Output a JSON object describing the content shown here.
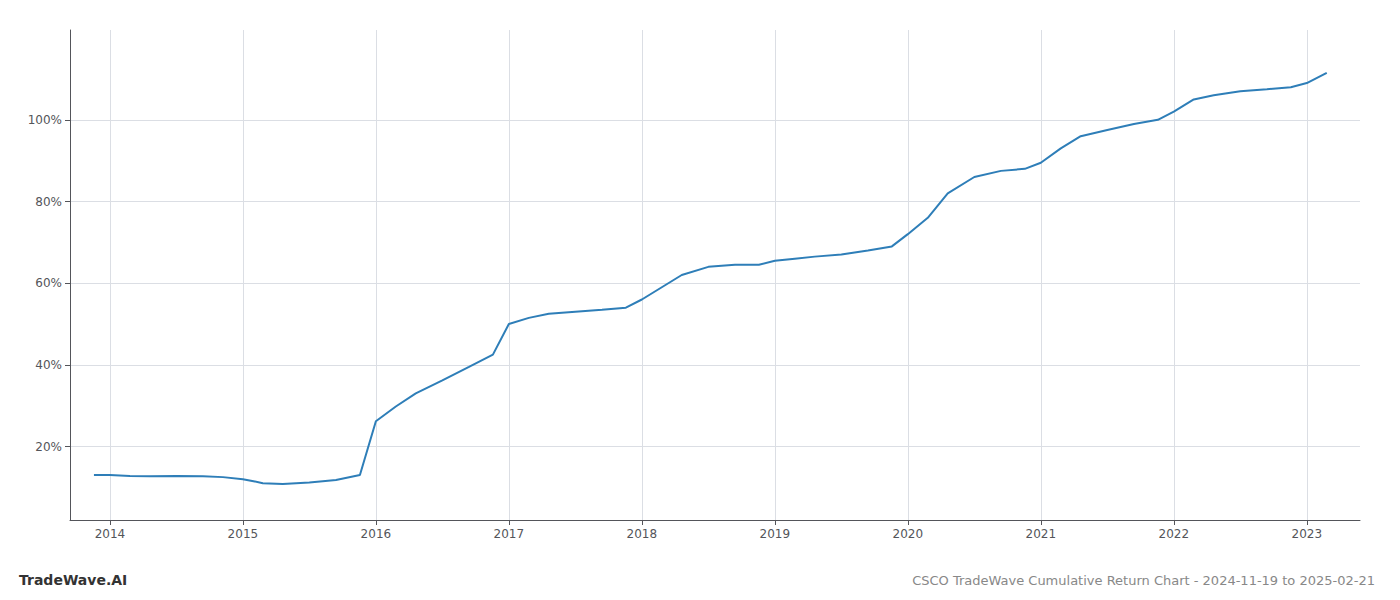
{
  "chart_data": {
    "type": "line",
    "title": "CSCO TradeWave Cumulative Return Chart - 2024-11-19 to 2025-02-21",
    "annotations": [
      "TradeWave.AI"
    ],
    "x": [
      2013.88,
      2014.0,
      2014.15,
      2014.3,
      2014.5,
      2014.7,
      2014.85,
      2015.0,
      2015.08,
      2015.15,
      2015.3,
      2015.5,
      2015.7,
      2015.88,
      2016.0,
      2016.15,
      2016.3,
      2016.5,
      2016.7,
      2016.88,
      2017.0,
      2017.15,
      2017.3,
      2017.5,
      2017.7,
      2017.88,
      2018.0,
      2018.15,
      2018.3,
      2018.5,
      2018.7,
      2018.88,
      2019.0,
      2019.15,
      2019.3,
      2019.5,
      2019.7,
      2019.88,
      2020.0,
      2020.15,
      2020.3,
      2020.5,
      2020.7,
      2020.88,
      2021.0,
      2021.15,
      2021.3,
      2021.5,
      2021.7,
      2021.88,
      2022.0,
      2022.15,
      2022.3,
      2022.5,
      2022.7,
      2022.88,
      2023.0,
      2023.15
    ],
    "values": [
      0.13,
      0.13,
      0.128,
      0.127,
      0.128,
      0.127,
      0.125,
      0.12,
      0.115,
      0.11,
      0.108,
      0.112,
      0.118,
      0.13,
      0.262,
      0.298,
      0.33,
      0.362,
      0.395,
      0.425,
      0.5,
      0.515,
      0.525,
      0.53,
      0.535,
      0.54,
      0.56,
      0.59,
      0.62,
      0.64,
      0.645,
      0.645,
      0.655,
      0.66,
      0.665,
      0.67,
      0.68,
      0.69,
      0.72,
      0.76,
      0.82,
      0.86,
      0.875,
      0.88,
      0.895,
      0.93,
      0.96,
      0.975,
      0.99,
      1.0,
      1.02,
      1.05,
      1.06,
      1.07,
      1.075,
      1.08,
      1.09,
      1.115
    ],
    "color": "#2e7eb8",
    "xlim": [
      2013.7,
      2023.4
    ],
    "xticks": [
      2014,
      2015,
      2016,
      2017,
      2018,
      2019,
      2020,
      2021,
      2022,
      2023
    ],
    "ylim": [
      0.02,
      1.22
    ],
    "yticks": [
      {
        "value": 0.2,
        "label": "20%"
      },
      {
        "value": 0.4,
        "label": "40%"
      },
      {
        "value": 0.6,
        "label": "60%"
      },
      {
        "value": 0.8,
        "label": "80%"
      },
      {
        "value": 1.0,
        "label": "100%"
      }
    ],
    "grid": true
  }
}
